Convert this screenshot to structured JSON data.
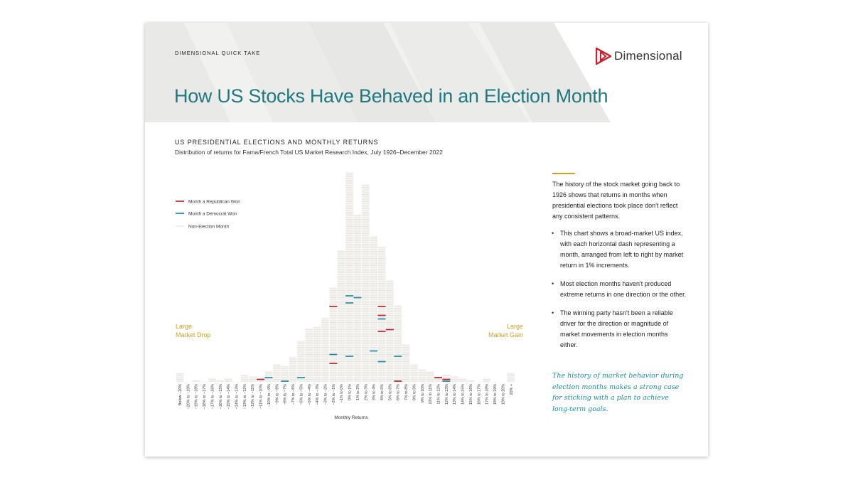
{
  "header": {
    "kicker": "DIMENSIONAL QUICK TAKE",
    "brand": "Dimensional",
    "title": "How US Stocks Have Behaved in an Election Month"
  },
  "colors": {
    "republican": "#b8202e",
    "democrat": "#1d87a8",
    "non_election": "#e6e4df",
    "gold": "#c9a227",
    "teal": "#1f7a80",
    "logo_red": "#c8202f"
  },
  "chart_data": {
    "type": "bar",
    "title": "US PRESIDENTIAL ELECTIONS AND MONTHLY RETURNS",
    "subtitle": "Distribution of returns for Fama/French Total US Market Research Index, July 1926–December 2022",
    "xlabel": "Monthly Returns",
    "unit": "months",
    "categories": [
      "Below −20%",
      "−20% to −19%",
      "−19% to −18%",
      "−18% to −17%",
      "−17% to −16%",
      "−16% to −15%",
      "−15% to −14%",
      "−14% to −13%",
      "−13% to −12%",
      "−12% to −11%",
      "−11% to −10%",
      "−10% to −9%",
      "−9% to −8%",
      "−8% to −7%",
      "−7% to −6%",
      "−6% to −5%",
      "−5% to −4%",
      "−4% to −3%",
      "−3% to −2%",
      "−2% to −1%",
      "−1% to 0%",
      "0% to 1%",
      "1% to 2%",
      "2% to 3%",
      "3% to 4%",
      "4% to 5%",
      "5% to 6%",
      "6% to 7%",
      "7% to 8%",
      "8% to 9%",
      "9% to 10%",
      "10% to 11%",
      "11% to 12%",
      "12% to 13%",
      "13% to 14%",
      "14% to 15%",
      "15% to 16%",
      "16% to 17%",
      "17% to 18%",
      "18% to 19%",
      "19% to 20%",
      "20% +"
    ],
    "values": [
      5,
      0,
      1,
      0,
      2,
      1,
      2,
      0,
      4,
      3,
      2,
      6,
      10,
      9,
      14,
      23,
      30,
      31,
      36,
      53,
      74,
      118,
      94,
      111,
      82,
      76,
      57,
      43,
      21,
      10,
      7,
      6,
      3,
      4,
      3,
      2,
      1,
      0,
      2,
      0,
      0,
      5
    ],
    "election_months": [
      {
        "category": "−11% to −10%",
        "level": 1,
        "party": "republican"
      },
      {
        "category": "−10% to −9%",
        "level": 2,
        "party": "democrat"
      },
      {
        "category": "−8% to −7%",
        "level": 0,
        "party": "democrat"
      },
      {
        "category": "−6% to −5%",
        "level": 2,
        "party": "democrat"
      },
      {
        "category": "−2% to −1%",
        "level": 10,
        "party": "republican"
      },
      {
        "category": "−2% to −1%",
        "level": 15,
        "party": "democrat"
      },
      {
        "category": "−2% to −1%",
        "level": 42,
        "party": "republican"
      },
      {
        "category": "0% to 1%",
        "level": 14,
        "party": "democrat"
      },
      {
        "category": "0% to 1%",
        "level": 44,
        "party": "democrat"
      },
      {
        "category": "0% to 1%",
        "level": 48,
        "party": "democrat"
      },
      {
        "category": "1% to 2%",
        "level": 47,
        "party": "democrat"
      },
      {
        "category": "3% to 4%",
        "level": 17,
        "party": "democrat"
      },
      {
        "category": "4% to 5%",
        "level": 11,
        "party": "democrat"
      },
      {
        "category": "4% to 5%",
        "level": 28,
        "party": "republican"
      },
      {
        "category": "4% to 5%",
        "level": 35,
        "party": "democrat"
      },
      {
        "category": "4% to 5%",
        "level": 37,
        "party": "republican"
      },
      {
        "category": "4% to 5%",
        "level": 42,
        "party": "republican"
      },
      {
        "category": "5% to 6%",
        "level": 29,
        "party": "republican"
      },
      {
        "category": "6% to 7%",
        "level": 0,
        "party": "republican"
      },
      {
        "category": "6% to 7%",
        "level": 14,
        "party": "democrat"
      },
      {
        "category": "11% to 12%",
        "level": 2,
        "party": "republican"
      },
      {
        "category": "12% to 13%",
        "level": 0,
        "party": "democrat"
      },
      {
        "category": "12% to 13%",
        "level": 1,
        "party": "republican"
      }
    ],
    "legend": [
      {
        "name": "Month a Republican Won",
        "key": "republican"
      },
      {
        "name": "Month a Democrat Won",
        "key": "democrat"
      },
      {
        "name": "Non-Election Month",
        "key": "non_election"
      }
    ],
    "legend_position": "top-left",
    "annotations": {
      "left": [
        "Large",
        "Market Drop"
      ],
      "right": [
        "Large",
        "Market Gain"
      ]
    }
  },
  "sidebar": {
    "intro": "The history of the stock market going back to 1926 shows that returns in months when presidential elections took place don't reflect any consistent patterns.",
    "bullets": [
      "This chart shows a broad-market US index, with each horizontal dash representing a month, arranged from left to right by market return in 1% increments.",
      "Most election months haven't produced extreme returns in one direction or the other.",
      "The winning party hasn't been a reliable driver for the direction or magnitude of market movements in election months either."
    ],
    "closing": "The history of market behavior during election months makes a strong case for sticking with a plan to achieve long-term goals."
  }
}
